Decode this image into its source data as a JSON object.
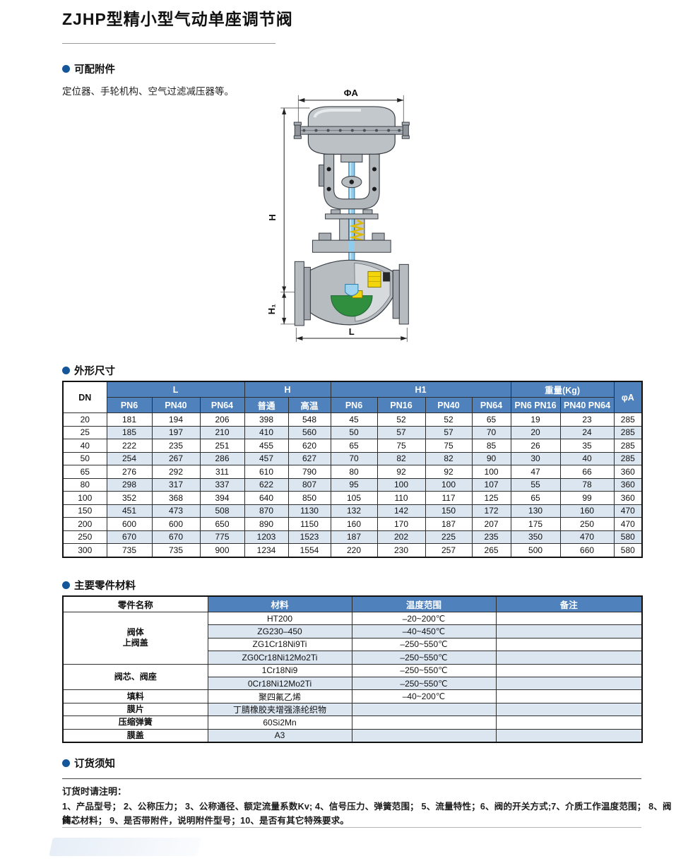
{
  "page": {
    "title": "ZJHP型精小型气动单座调节阀"
  },
  "colors": {
    "table_header_bg": "#4f81bd",
    "row_alt": "#dce6f1",
    "bullet": "#15559a",
    "stem_blue": "#8fcdef",
    "seat_green": "#2f8f3e",
    "plug_yellow": "#f2d50a"
  },
  "sections": {
    "accessories": {
      "heading": "可配附件",
      "text": "定位器、手轮机构、空气过滤减压器等。"
    },
    "dimensions": {
      "heading": "外形尺寸"
    },
    "materials": {
      "heading": "主要零件材料"
    },
    "ordering": {
      "heading": "订货须知",
      "note_title": "订货时请注明：",
      "lines": [
        "1、产品型号；  2、公称压力；  3、公称通径、额定流量系数Kv; 4、信号压力、弹簧范围；  5、流量特性；6、阀的开关方式;7、介质工作温度范围；  8、阀体、",
        "阀芯材料；  9、是否带附件，说明附件型号；10、是否有其它特殊要求。"
      ]
    }
  },
  "diagram": {
    "labels": {
      "phi_a": "ΦA",
      "h": "H",
      "h1": "H₁",
      "l": "L"
    }
  },
  "dim_table": {
    "col_dn": "DN",
    "group_l": "L",
    "group_h": "H",
    "group_h1": "H1",
    "group_weight": "重量(Kg)",
    "col_phi_a": "φA",
    "sub_headers": [
      "PN6",
      "PN40",
      "PN64",
      "普通",
      "高温",
      "PN6",
      "PN16",
      "PN40",
      "PN64",
      "PN6 PN16",
      "PN40 PN64"
    ],
    "rows": [
      [
        "20",
        "181",
        "194",
        "206",
        "398",
        "548",
        "45",
        "52",
        "52",
        "65",
        "19",
        "23",
        "285"
      ],
      [
        "25",
        "185",
        "197",
        "210",
        "410",
        "560",
        "50",
        "57",
        "57",
        "70",
        "20",
        "24",
        "285"
      ],
      [
        "40",
        "222",
        "235",
        "251",
        "455",
        "620",
        "65",
        "75",
        "75",
        "85",
        "26",
        "35",
        "285"
      ],
      [
        "50",
        "254",
        "267",
        "286",
        "457",
        "627",
        "70",
        "82",
        "82",
        "90",
        "30",
        "40",
        "285"
      ],
      [
        "65",
        "276",
        "292",
        "311",
        "610",
        "790",
        "80",
        "92",
        "92",
        "100",
        "47",
        "66",
        "360"
      ],
      [
        "80",
        "298",
        "317",
        "337",
        "622",
        "807",
        "95",
        "100",
        "100",
        "107",
        "55",
        "78",
        "360"
      ],
      [
        "100",
        "352",
        "368",
        "394",
        "640",
        "850",
        "105",
        "110",
        "117",
        "125",
        "65",
        "99",
        "360"
      ],
      [
        "150",
        "451",
        "473",
        "508",
        "870",
        "1130",
        "132",
        "142",
        "150",
        "172",
        "130",
        "160",
        "470"
      ],
      [
        "200",
        "600",
        "600",
        "650",
        "890",
        "1150",
        "160",
        "170",
        "187",
        "207",
        "175",
        "250",
        "470"
      ],
      [
        "250",
        "670",
        "670",
        "775",
        "1203",
        "1523",
        "187",
        "202",
        "225",
        "235",
        "350",
        "470",
        "580"
      ],
      [
        "300",
        "735",
        "735",
        "900",
        "1234",
        "1554",
        "220",
        "230",
        "257",
        "265",
        "500",
        "660",
        "580"
      ]
    ]
  },
  "mat_table": {
    "headers": [
      "零件名称",
      "材料",
      "温度范围",
      "备注"
    ],
    "groups": [
      {
        "name": "阀体\n上阀盖",
        "rows": [
          [
            "HT200",
            "–20~200℃"
          ],
          [
            "ZG230–450",
            "–40~450℃"
          ],
          [
            "ZG1Cr18Ni9Ti",
            "–250~550℃"
          ],
          [
            "ZG0Cr18Ni12Mo2Ti",
            "–250~550℃"
          ]
        ]
      },
      {
        "name": "阀芯、阀座",
        "rows": [
          [
            "1Cr18Ni9",
            "–250~550℃"
          ],
          [
            "0Cr18Ni12Mo2Ti",
            "–250~550℃"
          ]
        ]
      },
      {
        "name": "填料",
        "rows": [
          [
            "聚四氟乙烯",
            "–40~200℃"
          ]
        ]
      },
      {
        "name": "膜片",
        "rows": [
          [
            "丁腈橡胶夹增强涤纶织物",
            ""
          ]
        ]
      },
      {
        "name": "压缩弹簧",
        "rows": [
          [
            "60Si2Mn",
            ""
          ]
        ]
      },
      {
        "name": "膜盖",
        "rows": [
          [
            "A3",
            ""
          ]
        ]
      }
    ]
  }
}
